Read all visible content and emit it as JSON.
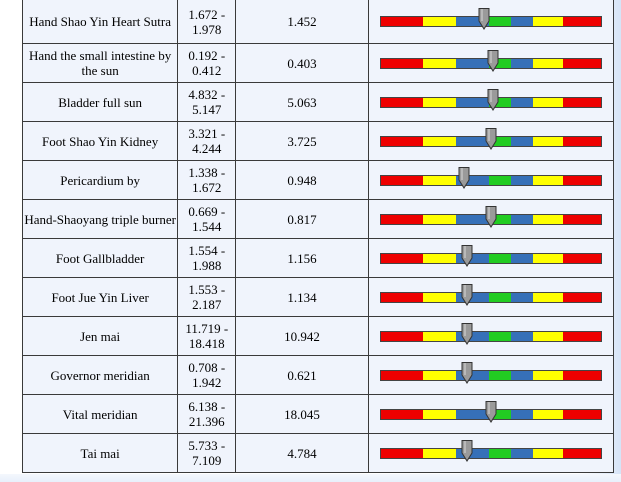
{
  "table": {
    "rows": [
      {
        "name": "Hand Shao Yin Heart Sutra",
        "range": "1.672 - 1.978",
        "value": "1.452",
        "level": 0.47
      },
      {
        "name": "Hand the small intestine by the sun",
        "range": "0.192 - 0.412",
        "value": "0.403",
        "level": 0.51
      },
      {
        "name": "Bladder full sun",
        "range": "4.832 - 5.147",
        "value": "5.063",
        "level": 0.51
      },
      {
        "name": "Foot Shao Yin Kidney",
        "range": "3.321 - 4.244",
        "value": "3.725",
        "level": 0.5
      },
      {
        "name": "Pericardium by",
        "range": "1.338 - 1.672",
        "value": "0.948",
        "level": 0.38
      },
      {
        "name": "Hand-Shaoyang triple burner",
        "range": "0.669 - 1.544",
        "value": "0.817",
        "level": 0.5
      },
      {
        "name": "Foot Gallbladder",
        "range": "1.554 - 1.988",
        "value": "1.156",
        "level": 0.39
      },
      {
        "name": "Foot Jue Yin Liver",
        "range": "1.553 - 2.187",
        "value": "1.134",
        "level": 0.39
      },
      {
        "name": "Jen mai",
        "range": "11.719 - 18.418",
        "value": "10.942",
        "level": 0.39
      },
      {
        "name": "Governor meridian",
        "range": "0.708 - 1.942",
        "value": "0.621",
        "level": 0.39
      },
      {
        "name": "Vital meridian",
        "range": "6.138 - 21.396",
        "value": "18.045",
        "level": 0.5
      },
      {
        "name": "Tai mai",
        "range": "5.733 - 7.109",
        "value": "4.784",
        "level": 0.39
      }
    ]
  },
  "colors": {
    "red": "#ee0000",
    "yellow": "#ffff00",
    "blue": "#3670b8",
    "green": "#22cc22",
    "marker": "#9a9a9a",
    "cell_bg": "#f0f4fc"
  },
  "icons": {
    "marker": "down-arrow-marker-icon"
  }
}
